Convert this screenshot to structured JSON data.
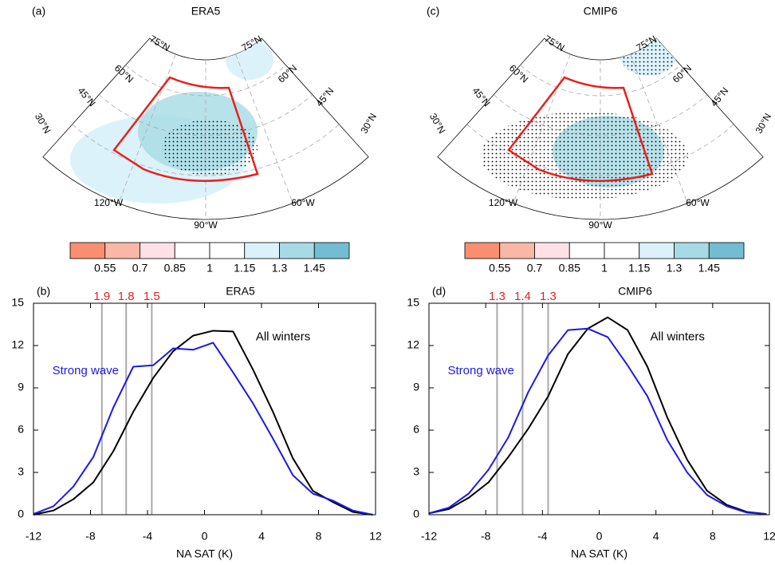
{
  "chart_data": [
    {
      "type": "map",
      "panel": "(a)",
      "title": "ERA5",
      "lat_labels": [
        "30°N",
        "45°N",
        "60°N",
        "75°N"
      ],
      "lon_labels": [
        "120°W",
        "90°W",
        "60°W"
      ],
      "colorbar_levels": [
        0.55,
        0.7,
        0.85,
        1,
        1.15,
        1.3,
        1.45
      ],
      "colorbar_colors": [
        "#f98e70",
        "#f9b7a6",
        "#fde1e7",
        "#ffffff",
        "#ffffff",
        "#dcf2fa",
        "#a6dbe5",
        "#72bdd2"
      ]
    },
    {
      "type": "line",
      "panel": "(b)",
      "title": "ERA5",
      "xlabel": "NA SAT (K)",
      "x": [
        -12,
        -10.6,
        -9.2,
        -7.8,
        -6.4,
        -5,
        -3.6,
        -2.2,
        -0.8,
        0.6,
        2,
        3.4,
        4.8,
        6.2,
        7.6,
        9,
        10.4,
        11.8
      ],
      "series": [
        {
          "name": "All winters",
          "color": "#000000",
          "values": [
            0,
            0.3,
            1.1,
            2.3,
            4.5,
            7.3,
            9.7,
            11.6,
            12.7,
            13.05,
            13.0,
            10.3,
            7.3,
            4.0,
            1.7,
            0.9,
            0.2,
            0
          ]
        },
        {
          "name": "Strong wave",
          "color": "#1a1ae6",
          "values": [
            0.05,
            0.6,
            2.0,
            4.1,
            7.6,
            10.5,
            10.6,
            11.8,
            11.7,
            12.2,
            10.1,
            7.9,
            5.4,
            2.8,
            1.5,
            1.0,
            0.3,
            0
          ]
        }
      ],
      "vlines": [
        -7.2,
        -5.5,
        -3.7
      ],
      "vline_labels": [
        1.9,
        1.8,
        1.5
      ],
      "xlim": [
        -12,
        12
      ],
      "ylim": [
        0,
        15
      ],
      "xticks": [
        -12,
        -8,
        -4,
        0,
        4,
        8,
        12
      ],
      "yticks": [
        0,
        3,
        6,
        9,
        12,
        15
      ]
    },
    {
      "type": "map",
      "panel": "(c)",
      "title": "CMIP6",
      "lat_labels": [
        "30°N",
        "45°N",
        "60°N",
        "75°N"
      ],
      "lon_labels": [
        "120°W",
        "90°W",
        "60°W"
      ],
      "colorbar_levels": [
        0.55,
        0.7,
        0.85,
        1,
        1.15,
        1.3,
        1.45
      ],
      "colorbar_colors": [
        "#f98e70",
        "#f9b7a6",
        "#fde1e7",
        "#ffffff",
        "#ffffff",
        "#dcf2fa",
        "#a6dbe5",
        "#72bdd2"
      ]
    },
    {
      "type": "line",
      "panel": "(d)",
      "title": "CMIP6",
      "xlabel": "NA SAT (K)",
      "x": [
        -12,
        -10.6,
        -9.2,
        -7.8,
        -6.4,
        -5,
        -3.6,
        -2.2,
        -0.8,
        0.6,
        2,
        3.4,
        4.8,
        6.2,
        7.6,
        9,
        10.4,
        11.8
      ],
      "series": [
        {
          "name": "All winters",
          "color": "#000000",
          "values": [
            0.1,
            0.4,
            1.2,
            2.3,
            4.1,
            6.1,
            8.4,
            11.4,
            13.2,
            14.0,
            13.1,
            10.5,
            6.9,
            3.9,
            1.7,
            0.7,
            0.2,
            0.05
          ]
        },
        {
          "name": "Strong wave",
          "color": "#1a1ae6",
          "values": [
            0.1,
            0.5,
            1.5,
            3.2,
            5.5,
            8.7,
            11.3,
            13.1,
            13.2,
            12.6,
            10.6,
            8.4,
            5.3,
            3.0,
            1.4,
            0.6,
            0.15,
            0.05
          ]
        }
      ],
      "vlines": [
        -7.2,
        -5.4,
        -3.6
      ],
      "vline_labels": [
        1.3,
        1.4,
        1.3
      ],
      "xlim": [
        -12,
        12
      ],
      "ylim": [
        0,
        15
      ],
      "xticks": [
        -12,
        -8,
        -4,
        0,
        4,
        8,
        12
      ],
      "yticks": [
        0,
        3,
        6,
        9,
        12,
        15
      ]
    }
  ]
}
